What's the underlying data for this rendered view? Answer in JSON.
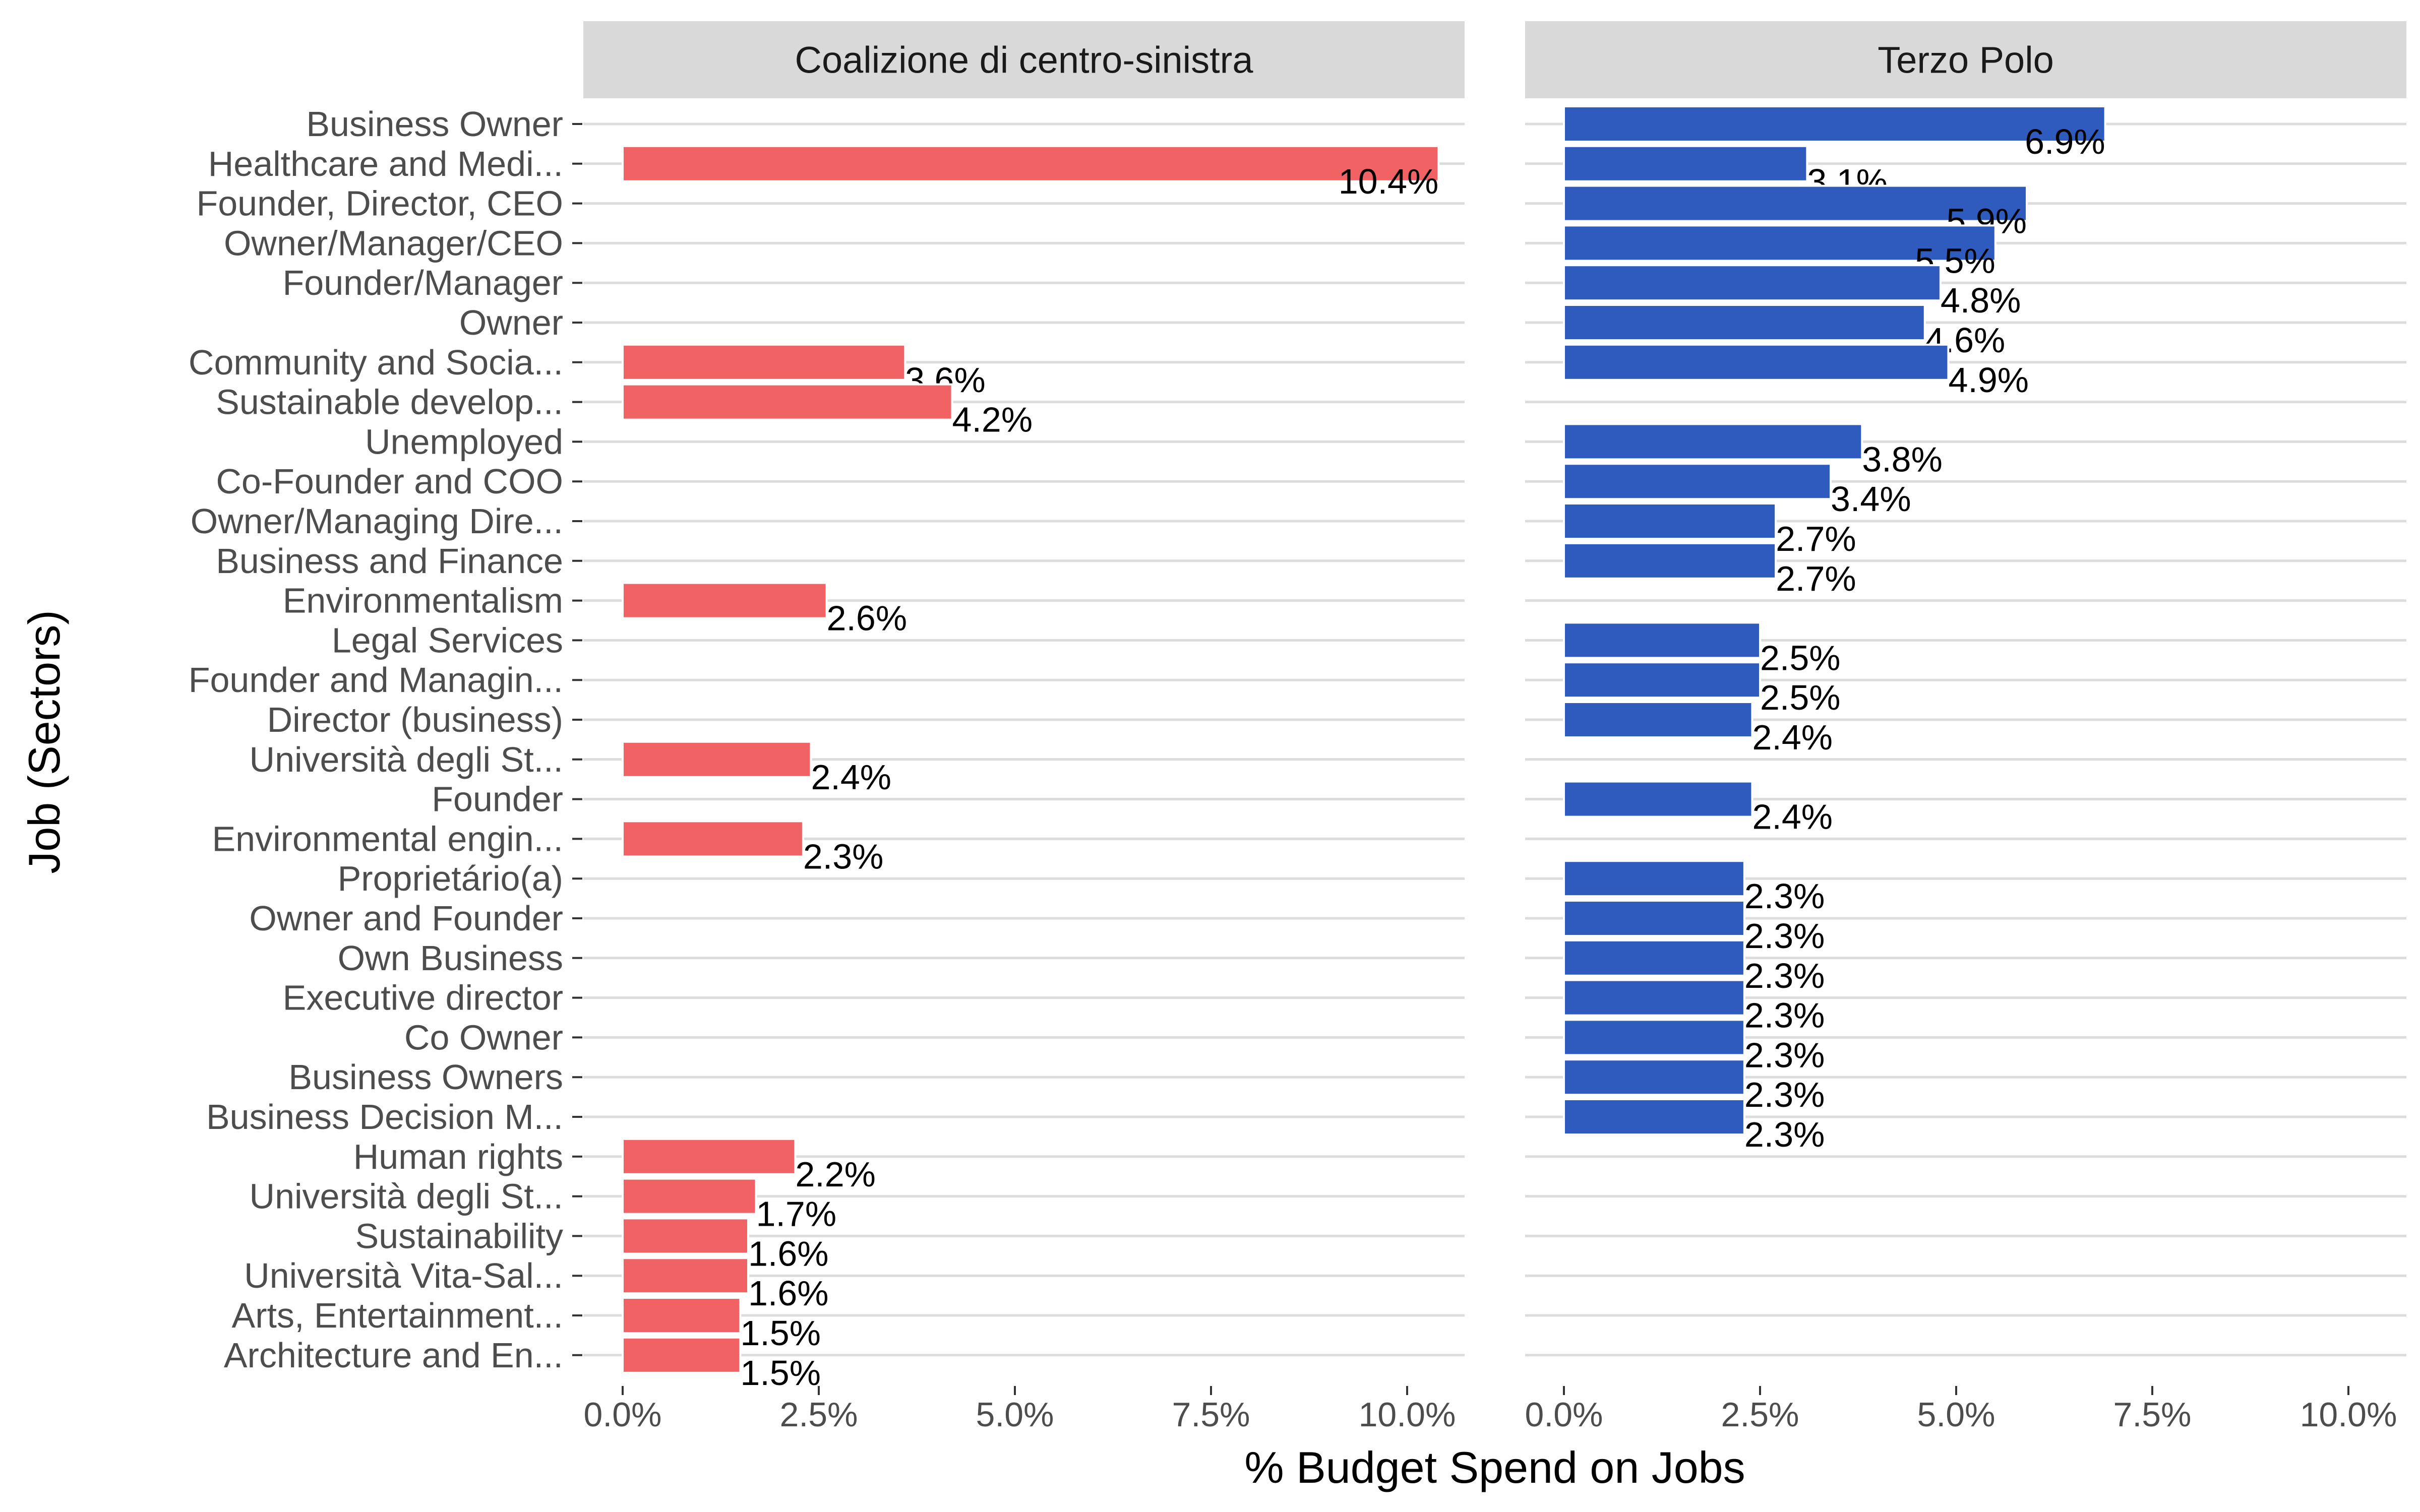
{
  "chart_data": {
    "type": "bar",
    "orientation": "horizontal",
    "xlabel": "% Budget Spend on Jobs",
    "ylabel": "Job (Sectors)",
    "xlim": [
      0,
      10.5
    ],
    "x_ticks": [
      0,
      2.5,
      5,
      7.5,
      10
    ],
    "x_tick_labels": [
      "0.0%",
      "2.5%",
      "5.0%",
      "7.5%",
      "10.0%"
    ],
    "grid": true,
    "categories": [
      "Business Owner",
      "Healthcare and Medi...",
      "Founder, Director, CEO",
      "Owner/Manager/CEO",
      "Founder/Manager",
      "Owner",
      "Community and Socia...",
      "Sustainable develop...",
      "Unemployed",
      "Co-Founder and COO",
      "Owner/Managing Dire...",
      "Business and Finance",
      "Environmentalism",
      "Legal Services",
      "Founder and Managin...",
      "Director (business)",
      "Università degli St...",
      "Founder",
      "Environmental engin...",
      "Proprietário(a)",
      "Owner and Founder",
      "Own Business",
      "Executive director",
      "Co Owner",
      "Business Owners",
      "Business Decision M...",
      "Human rights",
      "Università degli St...",
      "Sustainability",
      "Università Vita-Sal...",
      "Arts, Entertainment...",
      "Architecture and En..."
    ],
    "series": [
      {
        "name": "Coalizione di centro-sinistra",
        "color": "#F06263",
        "values": [
          null,
          10.4,
          null,
          null,
          null,
          null,
          3.6,
          4.2,
          null,
          null,
          null,
          null,
          2.6,
          null,
          null,
          null,
          2.4,
          null,
          2.3,
          null,
          null,
          null,
          null,
          null,
          null,
          null,
          2.2,
          1.7,
          1.6,
          1.6,
          1.5,
          1.5
        ],
        "labels": [
          null,
          "10.4%",
          null,
          null,
          null,
          null,
          "3.6%",
          "4.2%",
          null,
          null,
          null,
          null,
          "2.6%",
          null,
          null,
          null,
          "2.4%",
          null,
          "2.3%",
          null,
          null,
          null,
          null,
          null,
          null,
          null,
          "2.2%",
          "1.7%",
          "1.6%",
          "1.6%",
          "1.5%",
          "1.5%"
        ]
      },
      {
        "name": "Terzo Polo",
        "color": "#2F5BBF",
        "values": [
          6.9,
          3.1,
          5.9,
          5.5,
          4.8,
          4.6,
          4.9,
          null,
          3.8,
          3.4,
          2.7,
          2.7,
          null,
          2.5,
          2.5,
          2.4,
          null,
          2.4,
          null,
          2.3,
          2.3,
          2.3,
          2.3,
          2.3,
          2.3,
          2.3,
          null,
          null,
          null,
          null,
          null,
          null
        ],
        "labels": [
          "6.9%",
          "3.1%",
          "5.9%",
          "5.5%",
          "4.8%",
          "4.6%",
          "4.9%",
          null,
          "3.8%",
          "3.4%",
          "2.7%",
          "2.7%",
          null,
          "2.5%",
          "2.5%",
          "2.4%",
          null,
          "2.4%",
          null,
          "2.3%",
          "2.3%",
          "2.3%",
          "2.3%",
          "2.3%",
          "2.3%",
          "2.3%",
          null,
          null,
          null,
          null,
          null,
          null
        ]
      }
    ]
  }
}
